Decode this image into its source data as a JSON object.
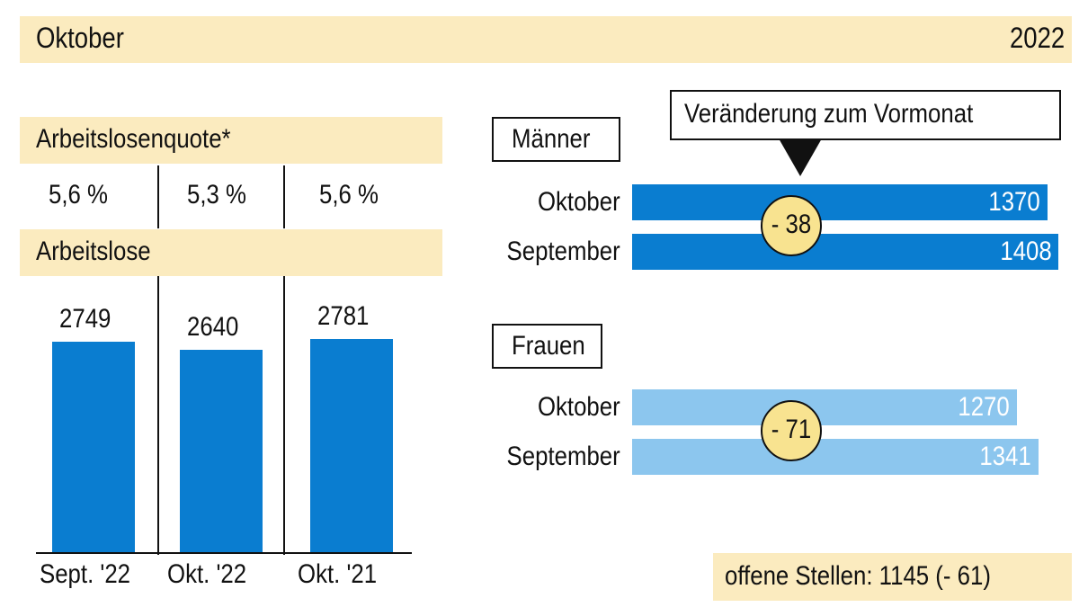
{
  "header": {
    "month": "Oktober",
    "year": "2022"
  },
  "colors": {
    "band": "#fbebbf",
    "dark_blue": "#0a7dd0",
    "light_blue": "#8cc6ee",
    "circle": "#f8e390"
  },
  "left": {
    "rate_title": "Arbeitslosenquote*",
    "rates": [
      "5,6 %",
      "5,3 %",
      "5,6 %"
    ],
    "unemployed_title": "Arbeitslose"
  },
  "chart_data": [
    {
      "type": "bar",
      "title": "Arbeitslose",
      "categories": [
        "Sept. '22",
        "Okt. '22",
        "Okt. '21"
      ],
      "values": [
        2749,
        2640,
        2781
      ],
      "labels": [
        "2749",
        "2640",
        "2781"
      ]
    },
    {
      "type": "bar",
      "orientation": "horizontal",
      "title": "Männer",
      "categories": [
        "Oktober",
        "September"
      ],
      "values": [
        1370,
        1408
      ],
      "labels": [
        "1370",
        "1408"
      ],
      "change": "- 38",
      "color": "#0a7dd0"
    },
    {
      "type": "bar",
      "orientation": "horizontal",
      "title": "Frauen",
      "categories": [
        "Oktober",
        "September"
      ],
      "values": [
        1270,
        1341
      ],
      "labels": [
        "1270",
        "1341"
      ],
      "change": "- 71",
      "color": "#8cc6ee"
    }
  ],
  "callout": "Veränderung zum Vormonat",
  "footer": "offene Stellen: 1145 (- 61)"
}
